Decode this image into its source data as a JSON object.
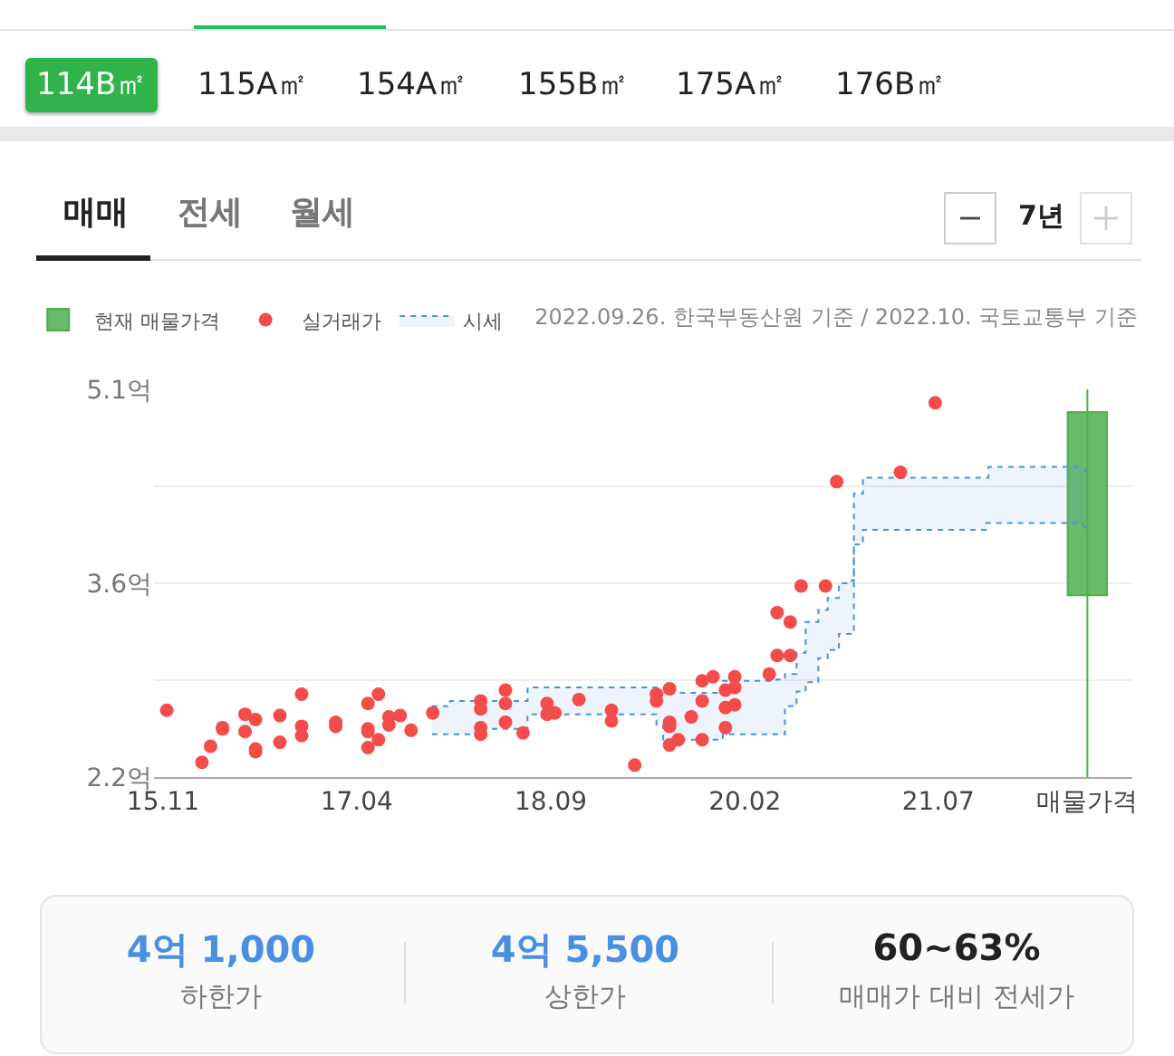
{
  "chart_data": {
    "type": "scatter",
    "subtitle": "2022.09.26. 한국부동산원 기준 / 2022.10. 국토교통부 기준",
    "annotations": [
      "114B㎡",
      "115A㎡",
      "154A㎡",
      "155B㎡",
      "175A㎡",
      "176B㎡",
      "매매",
      "전세",
      "월세",
      "7년",
      "4억 1,000",
      "하한가",
      "4억 5,500",
      "상한가",
      "60~63%",
      "매매가 대비 전세가"
    ],
    "xlim": [
      "2015-10-08",
      "2022-12-01"
    ],
    "xticks": [
      {
        "value": "2015-11-01",
        "label": "15.11"
      },
      {
        "value": "2017-04-01",
        "label": "17.04"
      },
      {
        "value": "2018-09-01",
        "label": "18.09"
      },
      {
        "value": "2020-02-01",
        "label": "20.02"
      },
      {
        "value": "2021-07-01",
        "label": "21.07"
      },
      {
        "value": "2022-08-03",
        "label": "매물가격"
      }
    ],
    "ylim": [
      2.2,
      5.1
    ],
    "yticks": [
      {
        "value": 2.2,
        "label": "2.2억"
      },
      {
        "value": 2.925,
        "label": null
      },
      {
        "value": 3.65,
        "label": "3.6억"
      },
      {
        "value": 4.375,
        "label": null
      },
      {
        "value": 5.1,
        "label": "5.1억"
      }
    ],
    "grid": "y",
    "legend": "top left",
    "ref_lines": [
      {
        "axis": "x",
        "value": "2022-08-03",
        "color": "#4caf50"
      }
    ],
    "series": [
      {
        "type": "line",
        "color": "#4a90e2",
        "line_style": "dotted",
        "x": [
          "2017-10-19",
          "2017-12-06",
          "2017-12-06",
          "2018-02-27",
          "2018-02-27",
          "2018-07-01",
          "2018-07-01",
          "2019-06-10",
          "2019-06-10",
          "2019-06-28",
          "2019-06-28",
          "2019-12-04",
          "2019-12-04",
          "2020-04-25",
          "2020-04-25",
          "2020-05-18",
          "2020-05-18",
          "2020-06-18",
          "2020-06-18",
          "2020-07-12",
          "2020-07-12",
          "2020-08-15",
          "2020-08-15",
          "2020-09-09",
          "2020-09-09",
          "2020-10-09",
          "2020-10-09",
          "2020-11-12",
          "2020-11-12",
          "2020-11-18",
          "2020-11-18",
          "2020-12-12",
          "2020-12-12",
          "2021-11-06",
          "2021-11-06",
          "2021-11-12",
          "2021-11-12",
          "2022-07-18",
          "2022-08-03"
        ],
        "values": [
          2.52,
          2.52,
          2.52,
          2.52,
          2.56,
          2.56,
          2.67,
          2.67,
          2.59,
          2.59,
          2.48,
          2.48,
          2.52,
          2.52,
          2.52,
          2.52,
          2.73,
          2.73,
          2.84,
          2.84,
          2.91,
          2.91,
          3.09,
          3.09,
          3.15,
          3.15,
          3.27,
          3.27,
          3.29,
          3.29,
          3.94,
          3.94,
          4.05,
          4.05,
          4.1,
          4.1,
          4.1,
          4.1,
          4.05
        ]
      },
      {
        "name": "시세",
        "type": "area",
        "color": "#4a90e2",
        "line_style": "dotted",
        "x": [
          "2017-10-19",
          "2017-12-06",
          "2017-12-06",
          "2018-02-27",
          "2018-02-27",
          "2018-07-01",
          "2018-07-01",
          "2019-06-10",
          "2019-06-10",
          "2019-06-28",
          "2019-06-28",
          "2019-12-04",
          "2019-12-04",
          "2020-04-25",
          "2020-04-25",
          "2020-05-18",
          "2020-05-18",
          "2020-06-18",
          "2020-06-18",
          "2020-07-12",
          "2020-07-12",
          "2020-08-15",
          "2020-08-15",
          "2020-09-09",
          "2020-09-09",
          "2020-10-09",
          "2020-10-09",
          "2020-11-12",
          "2020-11-12",
          "2020-11-18",
          "2020-11-18",
          "2020-12-12",
          "2020-12-12",
          "2021-11-06",
          "2021-11-06",
          "2021-11-12",
          "2021-11-12",
          "2022-07-18",
          "2022-08-03"
        ],
        "values": [
          2.73,
          2.73,
          2.77,
          2.77,
          2.77,
          2.77,
          2.87,
          2.87,
          2.83,
          2.83,
          2.83,
          2.83,
          2.92,
          2.92,
          2.93,
          2.93,
          2.97,
          2.97,
          3.13,
          3.13,
          3.36,
          3.36,
          3.45,
          3.45,
          3.54,
          3.54,
          3.65,
          3.65,
          3.67,
          3.67,
          4.32,
          4.32,
          4.44,
          4.44,
          4.44,
          4.44,
          4.52,
          4.52,
          4.48
        ]
      },
      {
        "name": "실거래가",
        "color": "#f44b4b",
        "marker": "circle",
        "x": [
          "2015-11-11",
          "2016-02-13",
          "2016-03-07",
          "2016-04-08",
          "2016-04-08",
          "2016-06-07",
          "2016-06-07",
          "2016-07-05",
          "2016-07-05",
          "2016-07-05",
          "2016-09-08",
          "2016-09-08",
          "2016-11-05",
          "2016-11-05",
          "2016-11-05",
          "2017-02-04",
          "2017-02-04",
          "2017-05-01",
          "2017-05-01",
          "2017-05-01",
          "2017-05-01",
          "2017-05-29",
          "2017-05-29",
          "2017-06-26",
          "2017-06-26",
          "2017-07-26",
          "2017-08-24",
          "2017-10-21",
          "2018-02-26",
          "2018-02-26",
          "2018-02-26",
          "2018-02-26",
          "2018-05-03",
          "2018-05-03",
          "2018-05-03",
          "2018-06-19",
          "2018-08-22",
          "2018-08-22",
          "2018-09-12",
          "2018-11-15",
          "2019-02-10",
          "2019-02-10",
          "2019-04-13",
          "2019-06-10",
          "2019-06-10",
          "2019-07-15",
          "2019-07-15",
          "2019-07-15",
          "2019-07-15",
          "2019-08-07",
          "2019-09-11",
          "2019-10-10",
          "2019-10-10",
          "2019-10-10",
          "2019-11-08",
          "2019-12-11",
          "2019-12-11",
          "2019-12-11",
          "2020-01-05",
          "2020-01-05",
          "2020-01-05",
          "2020-04-06",
          "2020-04-27",
          "2020-04-27",
          "2020-06-01",
          "2020-06-01",
          "2020-06-30",
          "2020-09-03",
          "2020-10-03",
          "2021-03-22",
          "2021-06-23"
        ],
        "values": [
          2.7,
          2.31,
          2.43,
          2.57,
          2.56,
          2.67,
          2.54,
          2.63,
          2.41,
          2.39,
          2.66,
          2.46,
          2.82,
          2.58,
          2.51,
          2.61,
          2.58,
          2.75,
          2.56,
          2.54,
          2.42,
          2.82,
          2.48,
          2.65,
          2.59,
          2.66,
          2.55,
          2.68,
          2.77,
          2.71,
          2.57,
          2.52,
          2.85,
          2.75,
          2.61,
          2.53,
          2.75,
          2.67,
          2.68,
          2.78,
          2.7,
          2.62,
          2.29,
          2.82,
          2.77,
          2.86,
          2.61,
          2.58,
          2.44,
          2.48,
          2.65,
          2.92,
          2.77,
          2.48,
          2.95,
          2.85,
          2.72,
          2.57,
          2.95,
          2.87,
          2.74,
          2.97,
          3.43,
          3.11,
          3.36,
          3.11,
          3.63,
          3.63,
          4.41,
          4.48,
          5.0
        ]
      },
      {
        "name": "현재 매물가격",
        "type": "bar",
        "color": "#4caf50",
        "x": [
          "2022-08-03"
        ],
        "base": [
          3.56
        ],
        "values": [
          1.37
        ]
      }
    ]
  }
}
